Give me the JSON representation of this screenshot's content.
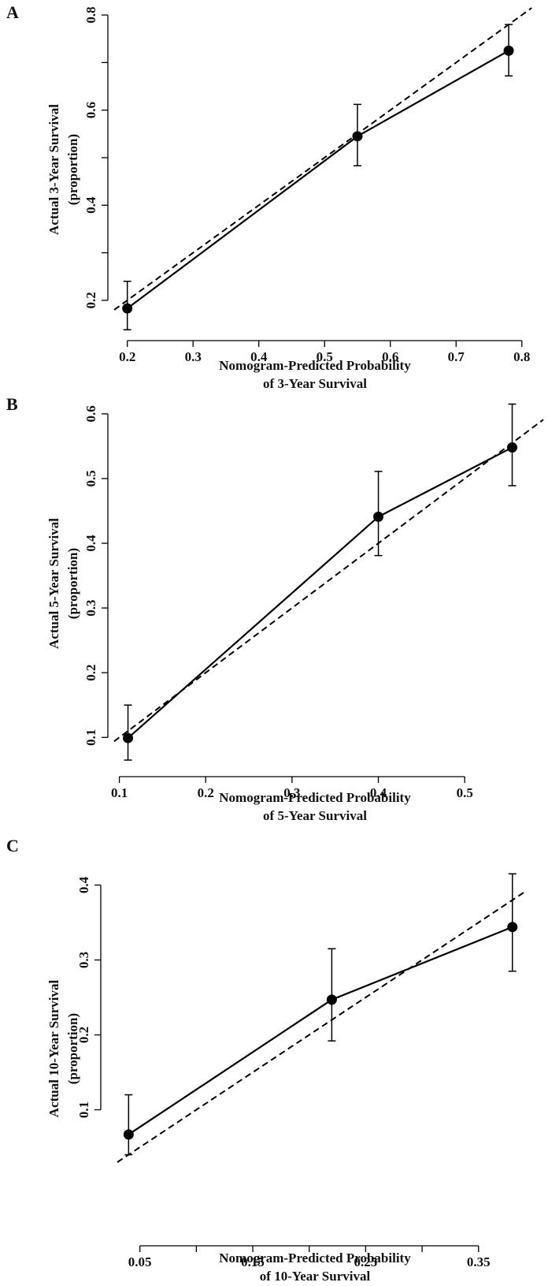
{
  "chart_data": [
    {
      "type": "line",
      "panel_label": "A",
      "x_label": [
        "Nomogram-Predicted Probability",
        "of 3-Year Survival"
      ],
      "y_label": [
        "Actual 3-Year Survival",
        "(proportion)"
      ],
      "x": [
        0.2,
        0.55,
        0.78
      ],
      "series": [
        {
          "color": "#000000",
          "values": [
            0.183,
            0.545,
            0.725
          ],
          "ci_low": [
            0.138,
            0.483,
            0.672
          ],
          "ci_high": [
            0.24,
            0.612,
            0.78
          ]
        }
      ],
      "xlim": [
        0.18,
        0.835
      ],
      "ylim": [
        0.16,
        0.815
      ],
      "xticks": [
        0.2,
        0.3,
        0.4,
        0.5,
        0.6,
        0.7,
        0.8
      ],
      "yticks": [
        0.2,
        0.4,
        0.6,
        0.8
      ],
      "yminorticks": [
        0.3,
        0.5,
        0.7
      ],
      "diagonal": true
    },
    {
      "type": "line",
      "panel_label": "B",
      "x_label": [
        "Nomogram-Predicted Probability",
        "of 5-Year Survival"
      ],
      "y_label": [
        "Actual 5-Year Survival",
        "(proportion)"
      ],
      "x": [
        0.11,
        0.4,
        0.555
      ],
      "series": [
        {
          "color": "#000000",
          "values": [
            0.099,
            0.441,
            0.548
          ],
          "ci_low": [
            0.065,
            0.381,
            0.489
          ],
          "ci_high": [
            0.15,
            0.511,
            0.615
          ]
        }
      ],
      "xlim": [
        0.094,
        0.591
      ],
      "ylim": [
        0.093,
        0.612
      ],
      "xticks": [
        0.1,
        0.2,
        0.3,
        0.4,
        0.5
      ],
      "yticks": [
        0.1,
        0.2,
        0.3,
        0.4,
        0.5,
        0.6
      ],
      "diagonal": true
    },
    {
      "type": "line",
      "panel_label": "C",
      "x_label": [
        "Nomogram-Predicted Probability",
        "of 10-Year Survival"
      ],
      "y_label": [
        "Actual 10-Year Survival",
        "(proportion)"
      ],
      "x": [
        0.04,
        0.22,
        0.38
      ],
      "series": [
        {
          "color": "#000000",
          "values": [
            0.067,
            0.247,
            0.344
          ],
          "ci_low": [
            0.04,
            0.192,
            0.285
          ],
          "ci_high": [
            0.12,
            0.315,
            0.415
          ]
        }
      ],
      "xlim": [
        0.03,
        0.392
      ],
      "ylim": [
        0.03,
        0.43
      ],
      "xticks": [
        0.05,
        0.15,
        0.25,
        0.35
      ],
      "xminorticks": [
        0.1,
        0.2,
        0.3
      ],
      "yticks": [
        0.1,
        0.2,
        0.3,
        0.4
      ],
      "diagonal": true
    }
  ]
}
